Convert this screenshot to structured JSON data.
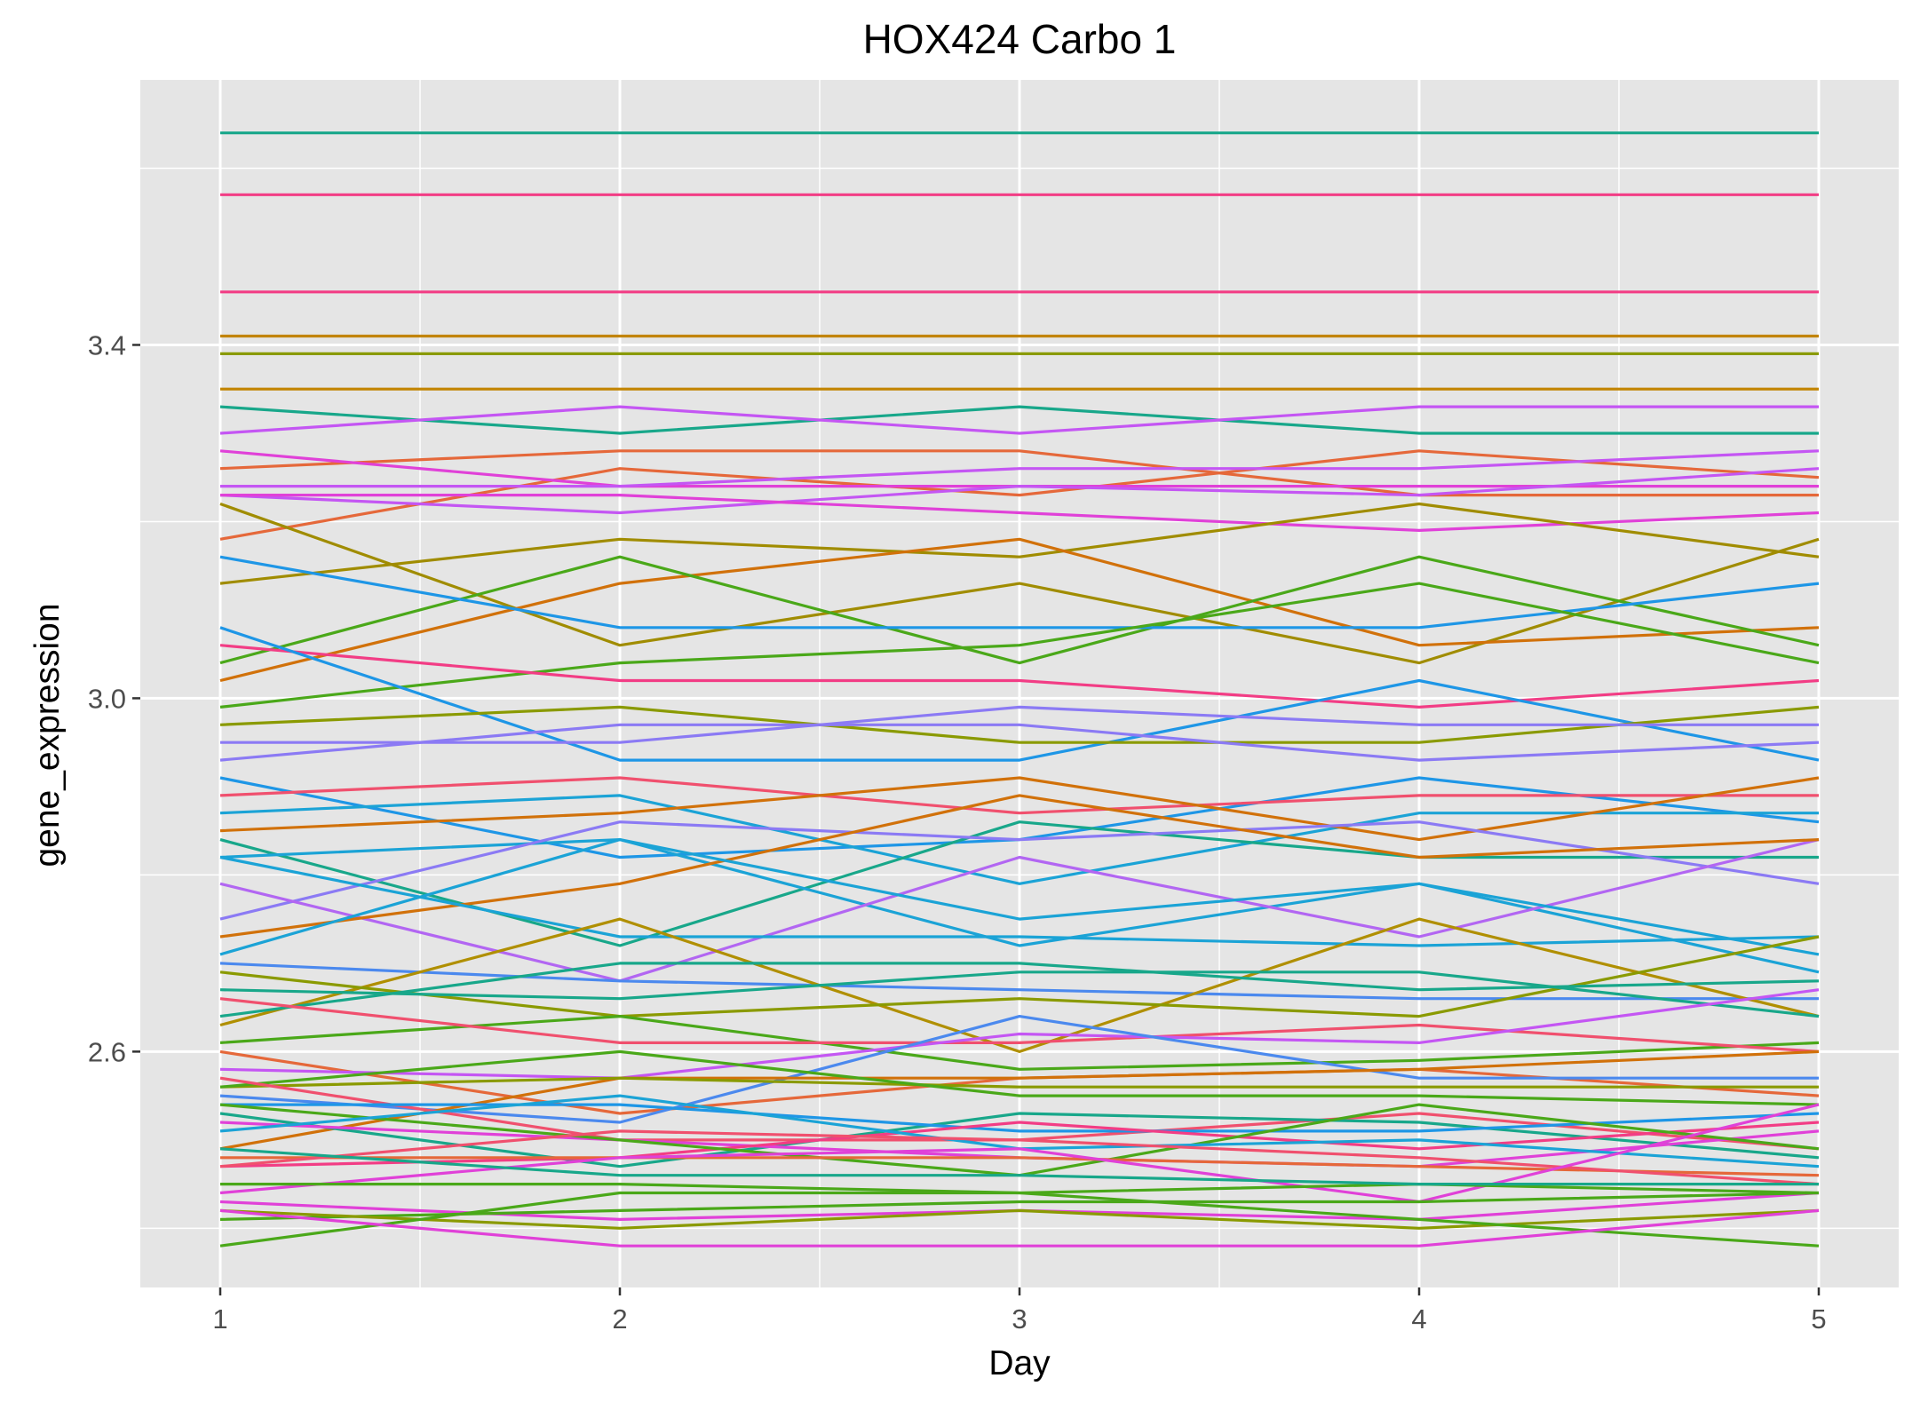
{
  "chart_data": {
    "type": "line",
    "title": "HOX424 Carbo 1",
    "xlabel": "Day",
    "ylabel": "gene_expression",
    "x": [
      1,
      2,
      3,
      4,
      5
    ],
    "x_ticks": [
      "1",
      "2",
      "3",
      "4",
      "5"
    ],
    "y_ticks": [
      {
        "value": 2.6,
        "label": "2.6"
      },
      {
        "value": 3.0,
        "label": "3.0"
      },
      {
        "value": 3.4,
        "label": "3.4"
      }
    ],
    "xlim": [
      0.8,
      5.2
    ],
    "ylim": [
      2.333,
      3.7
    ],
    "grid": true,
    "legend": "none",
    "panel_background": "#e5e5e5",
    "grid_color": "#ffffff",
    "series": [
      {
        "color": "#18a78a",
        "values": [
          3.64,
          3.64,
          3.64,
          3.64,
          3.64
        ]
      },
      {
        "color": "#f23d85",
        "values": [
          3.57,
          3.57,
          3.57,
          3.57,
          3.57
        ]
      },
      {
        "color": "#f23d85",
        "values": [
          3.46,
          3.46,
          3.46,
          3.46,
          3.46
        ]
      },
      {
        "color": "#c28400",
        "values": [
          3.35,
          3.35,
          3.35,
          3.35,
          3.35
        ]
      },
      {
        "color": "#c28400",
        "values": [
          3.41,
          3.41,
          3.41,
          3.41,
          3.41
        ]
      },
      {
        "color": "#8a9a00",
        "values": [
          3.39,
          3.39,
          3.39,
          3.39,
          3.39
        ]
      },
      {
        "color": "#18a78a",
        "values": [
          3.33,
          3.3,
          3.33,
          3.3,
          3.3
        ]
      },
      {
        "color": "#c456f3",
        "values": [
          3.3,
          3.33,
          3.3,
          3.33,
          3.33
        ]
      },
      {
        "color": "#e5683a",
        "values": [
          3.26,
          3.28,
          3.28,
          3.23,
          3.23
        ]
      },
      {
        "color": "#e5683a",
        "values": [
          3.18,
          3.26,
          3.23,
          3.28,
          3.25
        ]
      },
      {
        "color": "#e041d8",
        "values": [
          3.28,
          3.24,
          3.24,
          3.24,
          3.24
        ]
      },
      {
        "color": "#c456f3",
        "values": [
          3.24,
          3.24,
          3.26,
          3.26,
          3.28
        ]
      },
      {
        "color": "#c456f3",
        "values": [
          3.23,
          3.21,
          3.24,
          3.23,
          3.26
        ]
      },
      {
        "color": "#e041d8",
        "values": [
          3.23,
          3.23,
          3.21,
          3.19,
          3.21
        ]
      },
      {
        "color": "#a08c00",
        "values": [
          3.22,
          3.06,
          3.13,
          3.04,
          3.18
        ]
      },
      {
        "color": "#a08c00",
        "values": [
          3.13,
          3.18,
          3.16,
          3.22,
          3.16
        ]
      },
      {
        "color": "#d1710a",
        "values": [
          3.02,
          3.13,
          3.18,
          3.06,
          3.08
        ]
      },
      {
        "color": "#4aa819",
        "values": [
          3.04,
          3.16,
          3.04,
          3.16,
          3.06
        ]
      },
      {
        "color": "#1e96e6",
        "values": [
          3.16,
          3.08,
          3.08,
          3.08,
          3.13
        ]
      },
      {
        "color": "#4aa819",
        "values": [
          2.99,
          3.04,
          3.06,
          3.13,
          3.04
        ]
      },
      {
        "color": "#f23d85",
        "values": [
          3.06,
          3.02,
          3.02,
          2.99,
          3.02
        ]
      },
      {
        "color": "#1e96e6",
        "values": [
          3.08,
          2.93,
          2.93,
          3.02,
          2.93
        ]
      },
      {
        "color": "#8a9a00",
        "values": [
          2.97,
          2.99,
          2.95,
          2.95,
          2.99
        ]
      },
      {
        "color": "#8b7af4",
        "values": [
          2.95,
          2.95,
          2.99,
          2.97,
          2.97
        ]
      },
      {
        "color": "#8b7af4",
        "values": [
          2.93,
          2.97,
          2.97,
          2.93,
          2.95
        ]
      },
      {
        "color": "#1e96e6",
        "values": [
          2.91,
          2.82,
          2.84,
          2.91,
          2.86
        ]
      },
      {
        "color": "#f0506e",
        "values": [
          2.89,
          2.91,
          2.87,
          2.89,
          2.89
        ]
      },
      {
        "color": "#1ba3d6",
        "values": [
          2.87,
          2.89,
          2.79,
          2.87,
          2.87
        ]
      },
      {
        "color": "#d1710a",
        "values": [
          2.85,
          2.87,
          2.91,
          2.84,
          2.91
        ]
      },
      {
        "color": "#18a78a",
        "values": [
          2.84,
          2.72,
          2.86,
          2.82,
          2.82
        ]
      },
      {
        "color": "#1ba3d6",
        "values": [
          2.82,
          2.84,
          2.72,
          2.79,
          2.69
        ]
      },
      {
        "color": "#8b7af4",
        "values": [
          2.75,
          2.86,
          2.84,
          2.86,
          2.79
        ]
      },
      {
        "color": "#b266f2",
        "values": [
          2.79,
          2.68,
          2.82,
          2.73,
          2.84
        ]
      },
      {
        "color": "#d1710a",
        "values": [
          2.73,
          2.79,
          2.89,
          2.82,
          2.84
        ]
      },
      {
        "color": "#1ba3d6",
        "values": [
          2.71,
          2.84,
          2.75,
          2.79,
          2.71
        ]
      },
      {
        "color": "#1ba3d6",
        "values": [
          2.82,
          2.73,
          2.73,
          2.72,
          2.73
        ]
      },
      {
        "color": "#4b89ee",
        "values": [
          2.7,
          2.68,
          2.67,
          2.66,
          2.66
        ]
      },
      {
        "color": "#b08f00",
        "values": [
          2.63,
          2.75,
          2.6,
          2.75,
          2.64
        ]
      },
      {
        "color": "#8a9a00",
        "values": [
          2.69,
          2.64,
          2.66,
          2.64,
          2.73
        ]
      },
      {
        "color": "#18a78a",
        "values": [
          2.64,
          2.7,
          2.7,
          2.67,
          2.68
        ]
      },
      {
        "color": "#18a78a",
        "values": [
          2.67,
          2.66,
          2.69,
          2.69,
          2.64
        ]
      },
      {
        "color": "#4aa819",
        "values": [
          2.61,
          2.64,
          2.58,
          2.59,
          2.61
        ]
      },
      {
        "color": "#f0506e",
        "values": [
          2.66,
          2.61,
          2.61,
          2.63,
          2.6
        ]
      },
      {
        "color": "#e5683a",
        "values": [
          2.6,
          2.53,
          2.57,
          2.58,
          2.55
        ]
      },
      {
        "color": "#c456f3",
        "values": [
          2.58,
          2.57,
          2.62,
          2.61,
          2.67
        ]
      },
      {
        "color": "#4b89ee",
        "values": [
          2.55,
          2.52,
          2.64,
          2.57,
          2.57
        ]
      },
      {
        "color": "#d1710a",
        "values": [
          2.49,
          2.57,
          2.57,
          2.58,
          2.6
        ]
      },
      {
        "color": "#8a9a00",
        "values": [
          2.56,
          2.57,
          2.56,
          2.56,
          2.56
        ]
      },
      {
        "color": "#4aa819",
        "values": [
          2.56,
          2.6,
          2.55,
          2.55,
          2.54
        ]
      },
      {
        "color": "#f0506e",
        "values": [
          2.57,
          2.5,
          2.5,
          2.53,
          2.49
        ]
      },
      {
        "color": "#18a78a",
        "values": [
          2.53,
          2.47,
          2.53,
          2.52,
          2.48
        ]
      },
      {
        "color": "#1e96e6",
        "values": [
          2.54,
          2.54,
          2.51,
          2.51,
          2.53
        ]
      },
      {
        "color": "#e041d8",
        "values": [
          2.52,
          2.5,
          2.48,
          2.47,
          2.51
        ]
      },
      {
        "color": "#f23d85",
        "values": [
          2.47,
          2.48,
          2.52,
          2.49,
          2.52
        ]
      },
      {
        "color": "#4aa819",
        "values": [
          2.54,
          2.5,
          2.46,
          2.54,
          2.49
        ]
      },
      {
        "color": "#1ba3d6",
        "values": [
          2.51,
          2.55,
          2.49,
          2.5,
          2.47
        ]
      },
      {
        "color": "#e5683a",
        "values": [
          2.48,
          2.48,
          2.48,
          2.47,
          2.46
        ]
      },
      {
        "color": "#f0506e",
        "values": [
          2.47,
          2.51,
          2.5,
          2.48,
          2.45
        ]
      },
      {
        "color": "#e041d8",
        "values": [
          2.44,
          2.48,
          2.49,
          2.43,
          2.54
        ]
      },
      {
        "color": "#4aa819",
        "values": [
          2.45,
          2.45,
          2.44,
          2.45,
          2.44
        ]
      },
      {
        "color": "#18a78a",
        "values": [
          2.49,
          2.46,
          2.46,
          2.45,
          2.45
        ]
      },
      {
        "color": "#e041d8",
        "values": [
          2.43,
          2.41,
          2.42,
          2.41,
          2.44
        ]
      },
      {
        "color": "#4aa819",
        "values": [
          2.41,
          2.42,
          2.43,
          2.43,
          2.44
        ]
      },
      {
        "color": "#8a9a00",
        "values": [
          2.42,
          2.4,
          2.42,
          2.4,
          2.42
        ]
      },
      {
        "color": "#4aa819",
        "values": [
          2.38,
          2.44,
          2.44,
          2.41,
          2.38
        ]
      },
      {
        "color": "#e041d8",
        "values": [
          2.42,
          2.38,
          2.38,
          2.38,
          2.42
        ]
      }
    ]
  }
}
